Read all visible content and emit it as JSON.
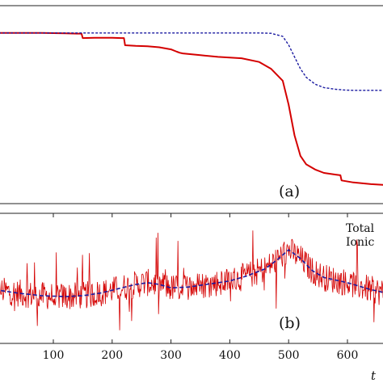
{
  "chart_data": [
    {
      "type": "line",
      "panel_label": "(a)",
      "x": [
        0,
        40,
        80,
        120,
        140,
        148,
        150,
        170,
        200,
        215,
        220,
        222,
        240,
        260,
        280,
        300,
        310,
        315,
        320,
        350,
        380,
        420,
        450,
        470,
        490,
        500,
        510,
        520,
        530,
        545,
        560,
        580,
        588,
        590,
        610,
        640,
        660,
        680
      ],
      "series": [
        {
          "color": "#d40000",
          "style": "solid",
          "values": [
            1.0,
            1.0,
            1.0,
            0.999,
            0.998,
            0.998,
            0.985,
            0.986,
            0.986,
            0.985,
            0.985,
            0.964,
            0.962,
            0.961,
            0.958,
            0.952,
            0.945,
            0.942,
            0.94,
            0.935,
            0.93,
            0.926,
            0.915,
            0.895,
            0.86,
            0.79,
            0.7,
            0.64,
            0.615,
            0.6,
            0.59,
            0.585,
            0.583,
            0.568,
            0.562,
            0.557,
            0.555,
            0.554
          ]
        },
        {
          "color": "#1a1aa0",
          "style": "dashed",
          "values": [
            1.0,
            1.0,
            1.0,
            1.0,
            1.0,
            1.0,
            1.0,
            1.0,
            1.0,
            1.0,
            1.0,
            1.0,
            1.0,
            1.0,
            1.0,
            1.0,
            1.0,
            1.0,
            1.0,
            1.0,
            1.0,
            1.0,
            1.0,
            0.999,
            0.99,
            0.965,
            0.93,
            0.895,
            0.87,
            0.85,
            0.84,
            0.835,
            0.834,
            0.833,
            0.832,
            0.832,
            0.832,
            0.832
          ]
        }
      ],
      "xlim": [
        0,
        680
      ],
      "ylim": [
        0.5,
        1.08
      ],
      "grid": false
    },
    {
      "type": "line",
      "panel_label": "(b)",
      "x_ticks": [
        "100",
        "200",
        "300",
        "400",
        "500",
        "600"
      ],
      "xlabel_partial": "t",
      "legend": [
        "Total",
        "Ionic"
      ],
      "series": [
        {
          "color": "#d40000",
          "style": "solid",
          "name": "Total",
          "noise_amplitude": 1.0
        },
        {
          "color": "#1a1aa0",
          "style": "dashed",
          "name": "Ionic",
          "x": [
            0,
            40,
            80,
            120,
            150,
            180,
            210,
            240,
            260,
            280,
            300,
            330,
            360,
            400,
            430,
            460,
            480,
            500,
            520,
            540,
            560,
            600,
            640,
            680
          ],
          "values": [
            -0.2,
            -0.4,
            -0.55,
            -0.6,
            -0.55,
            -0.4,
            -0.15,
            0.1,
            0.2,
            0.1,
            -0.1,
            -0.05,
            0.1,
            0.3,
            0.6,
            1.0,
            1.5,
            2.1,
            1.6,
            0.9,
            0.5,
            0.2,
            -0.2,
            -0.5
          ]
        }
      ],
      "xlim": [
        0,
        680
      ],
      "ylim": [
        -3.3,
        4.2
      ],
      "grid": false
    }
  ]
}
